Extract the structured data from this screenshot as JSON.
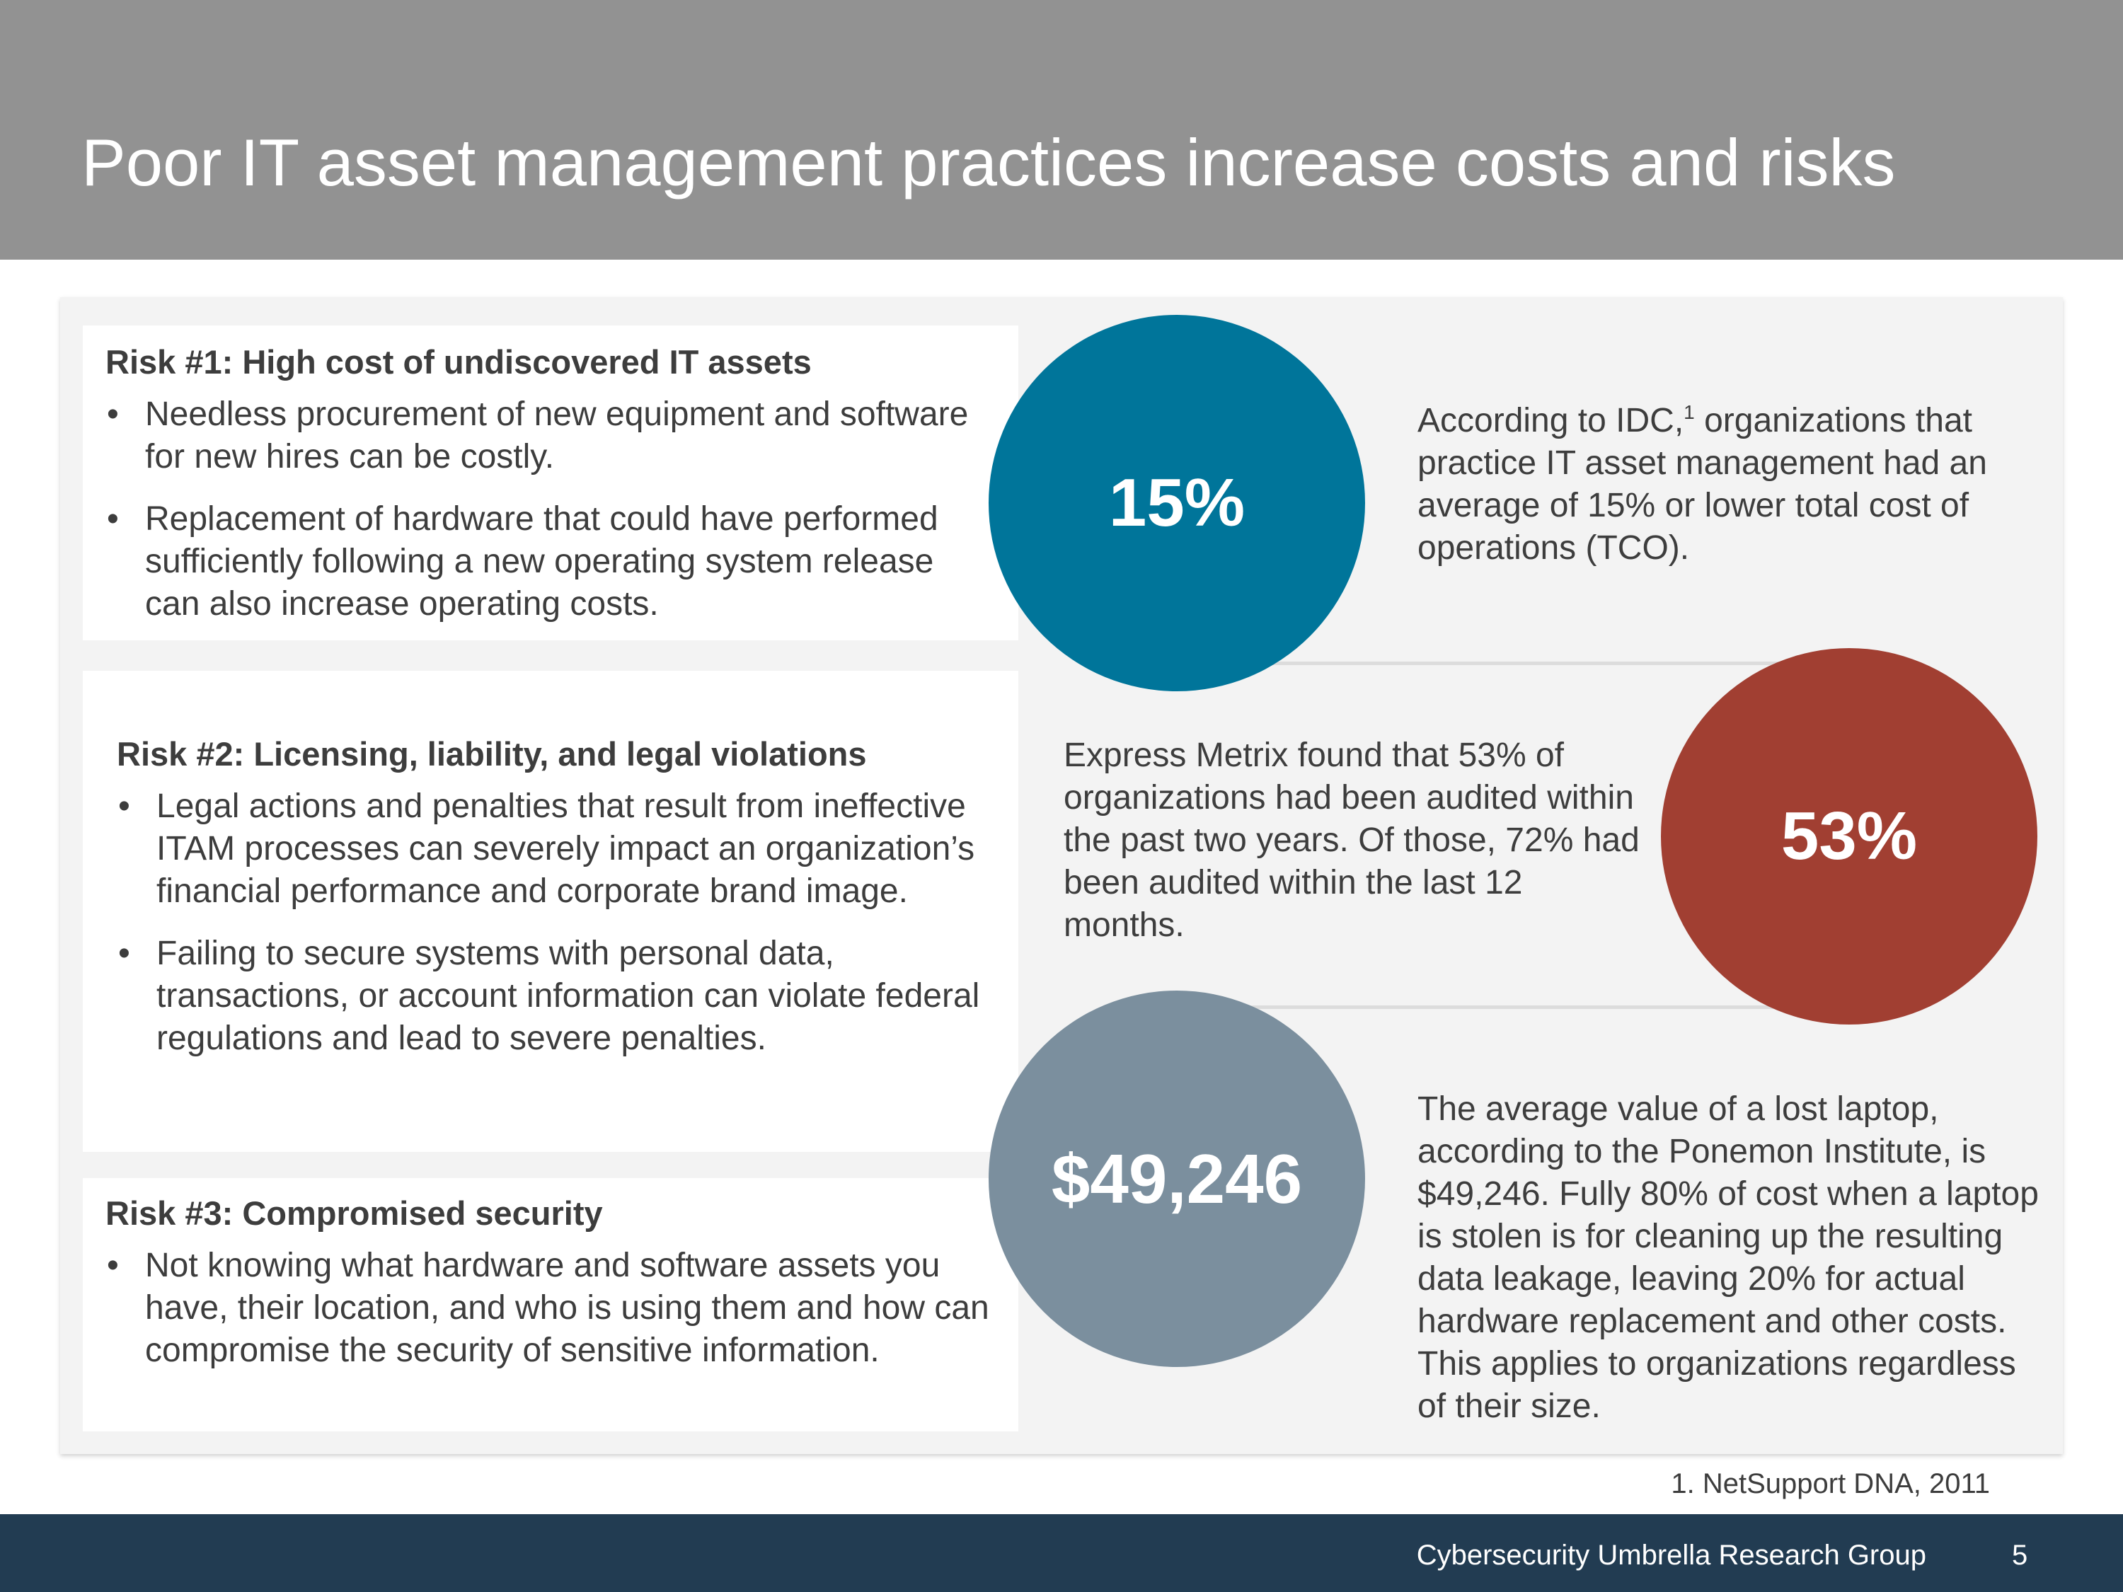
{
  "slide": {
    "title": "Poor IT asset management practices increase costs and risks"
  },
  "risks": [
    {
      "heading": "Risk #1: High cost of undiscovered IT assets",
      "bullets": [
        "Needless procurement of new equipment and software for new hires can be costly.",
        "Replacement of hardware that could have performed sufficiently following a new operating system release can also increase operating costs."
      ]
    },
    {
      "heading": "Risk #2: Licensing, liability, and legal violations",
      "bullets": [
        "Legal actions and penalties that result from ineffective ITAM processes can severely impact an organization’s financial performance and corporate brand image.",
        "Failing to secure systems with personal data, transactions, or account information can violate federal regulations and lead to severe penalties."
      ]
    },
    {
      "heading": "Risk #3: Compromised security",
      "bullets": [
        "Not knowing what hardware and software assets you have, their location, and who is using them and how can compromise the security of sensitive information."
      ]
    }
  ],
  "bullet_glyph": "•",
  "stats": [
    {
      "value": "15%",
      "color": "#00759a",
      "text_before": "According to IDC,",
      "footnote_ref": "1",
      "text_after": " organizations that practice IT asset management had an average of 15% or lower total cost of operations (TCO)."
    },
    {
      "value": "53%",
      "color": "#a13f32",
      "text": "Express Metrix found that 53% of organizations had been audited within the past two years. Of those, 72% had been audited within the last 12 months."
    },
    {
      "value": "$49,246",
      "color": "#7b8f9e",
      "text": "The average value of a lost laptop, according to the Ponemon Institute, is $49,246. Fully 80% of cost when a laptop is stolen is for cleaning up the resulting data leakage, leaving 20% for actual hardware replacement and other costs. This applies to organizations regardless of their size."
    }
  ],
  "footnote": "1. NetSupport DNA, 2011",
  "footer": {
    "organization": "Cybersecurity Umbrella Research Group",
    "page_number": "5"
  },
  "colors": {
    "title_bar": "#929292",
    "footer_bar": "#223c52",
    "panel": "#f3f3f3"
  }
}
